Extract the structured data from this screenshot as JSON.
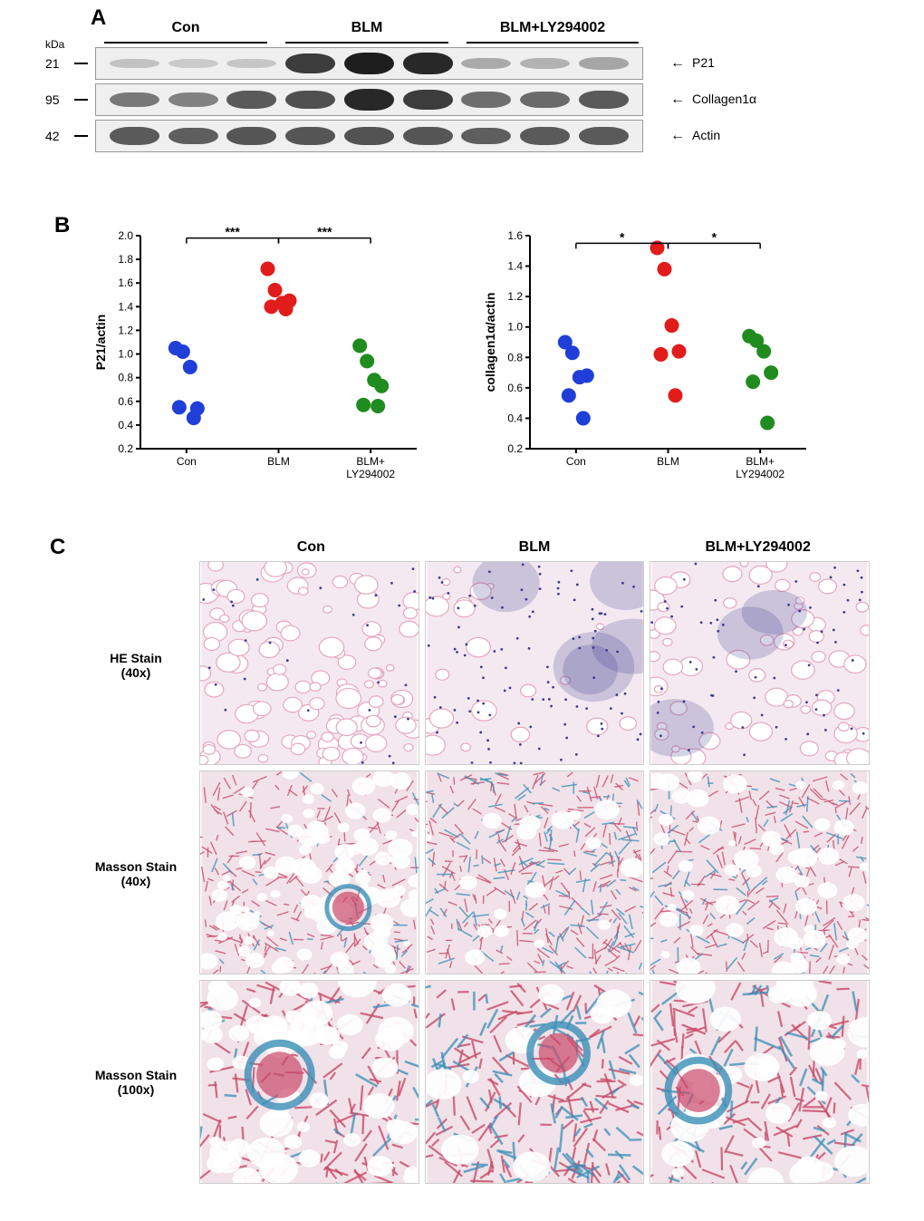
{
  "panels": {
    "a": "A",
    "b": "B",
    "c": "C"
  },
  "blot": {
    "kda_label": "kDa",
    "groups": [
      "Con",
      "BLM",
      "BLM+LY294002"
    ],
    "proteins": [
      {
        "name": "P21",
        "mw": "21",
        "bands": [
          0.18,
          0.14,
          0.16,
          0.85,
          1.0,
          0.95,
          0.3,
          0.26,
          0.32
        ]
      },
      {
        "name": "Collagen1α",
        "mw": "95",
        "bands": [
          0.55,
          0.5,
          0.7,
          0.75,
          0.95,
          0.85,
          0.6,
          0.62,
          0.7
        ]
      },
      {
        "name": "Actin",
        "mw": "42",
        "bands": [
          0.7,
          0.68,
          0.72,
          0.72,
          0.74,
          0.72,
          0.68,
          0.7,
          0.7
        ]
      }
    ],
    "band_color_dark": "#2a2a2a",
    "band_color_light": "#d8d8d8",
    "strip_bg": "#efefef"
  },
  "charts": {
    "colors": {
      "Con": "#1f3fd8",
      "BLM": "#e21b1b",
      "BLM+LY294002": "#1e8c1e"
    },
    "categories": [
      "Con",
      "BLM",
      "BLM+\nLY294002"
    ],
    "point_radius": 8,
    "axis_color": "#000000",
    "font_color": "#000000",
    "p21": {
      "ylabel": "P21/actin",
      "ylim": [
        0.2,
        2.0
      ],
      "yticks": [
        0.2,
        0.4,
        0.6,
        0.8,
        1.0,
        1.2,
        1.4,
        1.6,
        1.8,
        2.0
      ],
      "sig": [
        {
          "from": 0,
          "to": 1,
          "label": "***",
          "y": 1.98
        },
        {
          "from": 1,
          "to": 2,
          "label": "***",
          "y": 1.98
        }
      ],
      "series": {
        "Con": [
          1.05,
          1.02,
          0.89,
          0.54,
          0.55,
          0.46
        ],
        "BLM": [
          1.72,
          1.54,
          1.43,
          1.45,
          1.4,
          1.38
        ],
        "BLM+LY294002": [
          1.07,
          0.94,
          0.78,
          0.73,
          0.57,
          0.56
        ]
      }
    },
    "collagen": {
      "ylabel": "collagen1α/actin",
      "ylim": [
        0.2,
        1.6
      ],
      "yticks": [
        0.2,
        0.4,
        0.6,
        0.8,
        1.0,
        1.2,
        1.4,
        1.6
      ],
      "sig": [
        {
          "from": 0,
          "to": 1,
          "label": "*",
          "y": 1.55
        },
        {
          "from": 1,
          "to": 2,
          "label": "*",
          "y": 1.55
        }
      ],
      "series": {
        "Con": [
          0.9,
          0.83,
          0.67,
          0.68,
          0.55,
          0.4
        ],
        "BLM": [
          1.52,
          1.38,
          1.01,
          0.84,
          0.82,
          0.55
        ],
        "BLM+LY294002": [
          0.94,
          0.91,
          0.84,
          0.7,
          0.64,
          0.37
        ]
      }
    }
  },
  "histo": {
    "columns": [
      "Con",
      "BLM",
      "BLM+LY294002"
    ],
    "rows": [
      {
        "label1": "HE Stain",
        "label2": "(40x)"
      },
      {
        "label1": "Masson Stain",
        "label2": "(40x)"
      },
      {
        "label1": "Masson Stain",
        "label2": "(100x)"
      }
    ],
    "he_nuclei": "#3b3b8f",
    "he_cyto": "#e6a6c0",
    "he_bg": "#f4e9f0",
    "masson_collagen": "#3a8fb7",
    "masson_red": "#c94a6a",
    "masson_bg": "#f0e2e8",
    "density": {
      "Con": 0.25,
      "BLM": 0.85,
      "BLM+LY294002": 0.55
    }
  }
}
